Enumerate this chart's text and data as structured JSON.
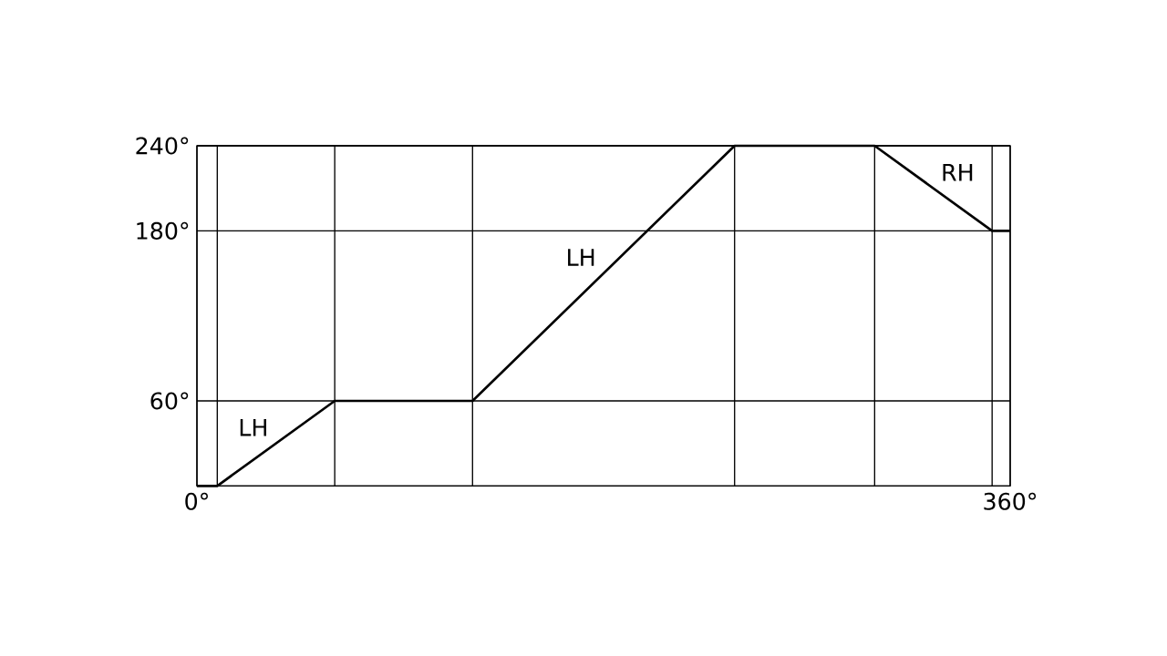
{
  "chart_data": {
    "type": "line",
    "x": [
      0,
      9,
      61,
      122,
      238,
      300,
      352,
      360
    ],
    "values": [
      0,
      0,
      60,
      60,
      240,
      240,
      180,
      180
    ],
    "color": "#000000",
    "xlim": [
      0,
      360
    ],
    "ylim": [
      0,
      240
    ],
    "xticks": [
      {
        "value": 0,
        "label": "0°"
      },
      {
        "value": 9,
        "label": null
      },
      {
        "value": 61,
        "label": null
      },
      {
        "value": 122,
        "label": null
      },
      {
        "value": 238,
        "label": null
      },
      {
        "value": 300,
        "label": null
      },
      {
        "value": 352,
        "label": null
      },
      {
        "value": 360,
        "label": "360°"
      }
    ],
    "yticks": [
      {
        "value": 0,
        "label": null
      },
      {
        "value": 60,
        "label": "60°"
      },
      {
        "value": 180,
        "label": "180°"
      },
      {
        "value": 240,
        "label": "240°"
      }
    ],
    "grid": true,
    "annotations": [
      {
        "text": "LH",
        "x": 35,
        "y": 30
      },
      {
        "text": "LH",
        "x": 180,
        "y": 150
      },
      {
        "text": "RH",
        "x": 326,
        "y": 210
      }
    ]
  }
}
